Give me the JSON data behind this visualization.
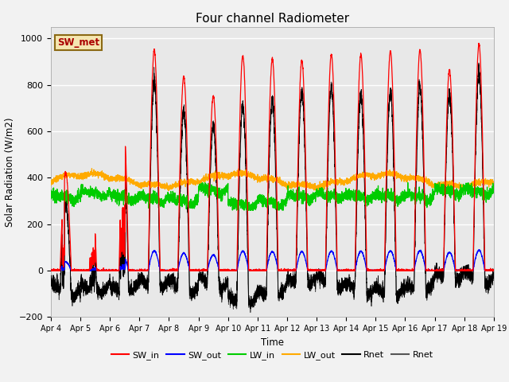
{
  "title": "Four channel Radiometer",
  "xlabel": "Time",
  "ylabel": "Solar Radiation (W/m2)",
  "ylim": [
    -200,
    1050
  ],
  "xlim": [
    0,
    15
  ],
  "background_color": "#e8e8e8",
  "annotation_text": "SW_met",
  "annotation_bg": "#f5e6b0",
  "annotation_border": "#8b6914",
  "xtick_labels": [
    "Apr 4",
    "Apr 5",
    "Apr 6",
    "Apr 7",
    "Apr 8",
    "Apr 9",
    "Apr 10",
    "Apr 11",
    "Apr 12",
    "Apr 13",
    "Apr 14",
    "Apr 15",
    "Apr 16",
    "Apr 17",
    "Apr 18",
    "Apr 19"
  ],
  "colors": {
    "SW_in": "#ff0000",
    "SW_out": "#0000ff",
    "LW_in": "#00cc00",
    "LW_out": "#ffaa00",
    "Rnet_black": "#000000",
    "Rnet_dark": "#555555"
  },
  "legend_labels": [
    "SW_in",
    "SW_out",
    "LW_in",
    "LW_out",
    "Rnet",
    "Rnet"
  ],
  "legend_colors": [
    "#ff0000",
    "#0000ff",
    "#00cc00",
    "#ffaa00",
    "#000000",
    "#555555"
  ]
}
